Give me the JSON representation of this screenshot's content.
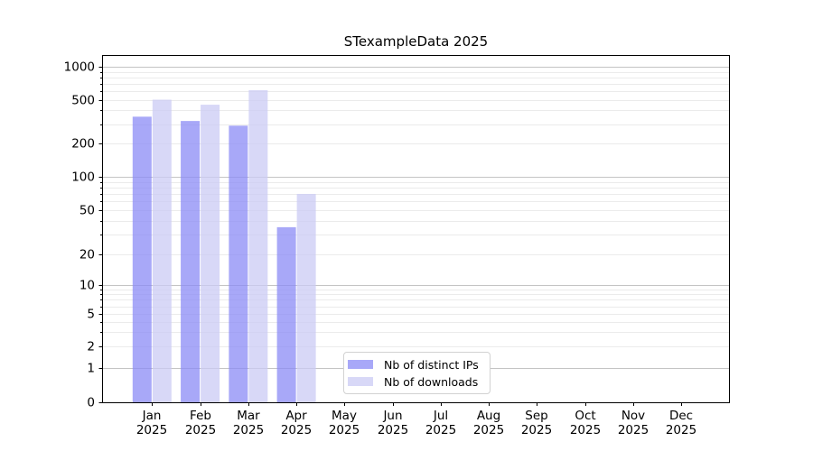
{
  "figure": {
    "background": "#ffffff"
  },
  "chart_data": {
    "type": "bar",
    "title": "STexampleData 2025",
    "categories": [
      "Jan",
      "Feb",
      "Mar",
      "Apr",
      "May",
      "Jun",
      "Jul",
      "Aug",
      "Sep",
      "Oct",
      "Nov",
      "Dec"
    ],
    "category_year": "2025",
    "series": [
      {
        "name": "Nb of distinct IPs",
        "color": "#8b8bf5",
        "alpha": 0.75,
        "values": [
          350,
          320,
          290,
          35,
          0,
          0,
          0,
          0,
          0,
          0,
          0,
          0
        ]
      },
      {
        "name": "Nb of downloads",
        "color": "#cbcbf4",
        "alpha": 0.75,
        "values": [
          500,
          450,
          610,
          70,
          0,
          0,
          0,
          0,
          0,
          0,
          0,
          0
        ]
      }
    ],
    "xlabel": "",
    "ylabel": "",
    "yscale": "symlog",
    "yticks": [
      0,
      1,
      2,
      5,
      10,
      20,
      50,
      100,
      200,
      500,
      1000
    ],
    "ylim": [
      0,
      1000
    ],
    "grid": "on",
    "legend_position": "lower center inside plot"
  },
  "colors": {
    "axis": "#000000",
    "tick_label": "#000000",
    "major_grid": "#c4c4c4",
    "minor_grid": "#ebebeb",
    "legend_border": "#d2d2d2"
  }
}
